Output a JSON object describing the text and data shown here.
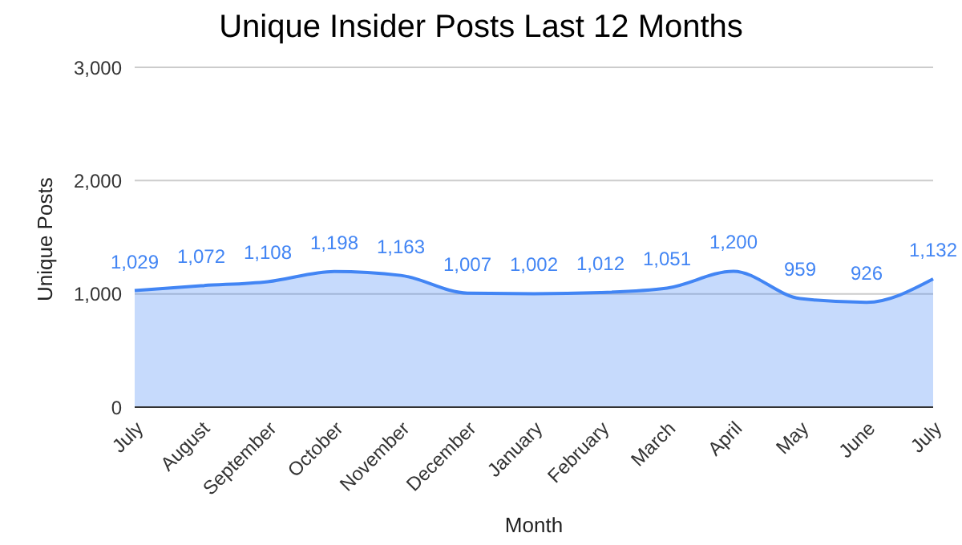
{
  "chart_data": {
    "type": "area",
    "title": "Unique Insider Posts Last 12 Months",
    "xlabel": "Month",
    "ylabel": "Unique Posts",
    "categories": [
      "July",
      "August",
      "September",
      "October",
      "November",
      "December",
      "January",
      "February",
      "March",
      "April",
      "May",
      "June",
      "July"
    ],
    "series": [
      {
        "color": "#4285f4",
        "values": [
          1029,
          1072,
          1108,
          1198,
          1163,
          1007,
          1002,
          1012,
          1051,
          1200,
          959,
          926,
          1132
        ],
        "value_labels": [
          "1,029",
          "1,072",
          "1,108",
          "1,198",
          "1,163",
          "1,007",
          "1,002",
          "1,012",
          "1,051",
          "1,200",
          "959",
          "926",
          "1,132"
        ]
      }
    ],
    "ylim": [
      0,
      3000
    ],
    "yticks": [
      0,
      {
        "value": 1000,
        "label": "1,000"
      },
      {
        "value": 2000,
        "label": "2,000"
      },
      {
        "value": 3000,
        "label": "3,000"
      }
    ],
    "grid": "y",
    "legend": false,
    "line_style": "solid",
    "marker": "none"
  }
}
